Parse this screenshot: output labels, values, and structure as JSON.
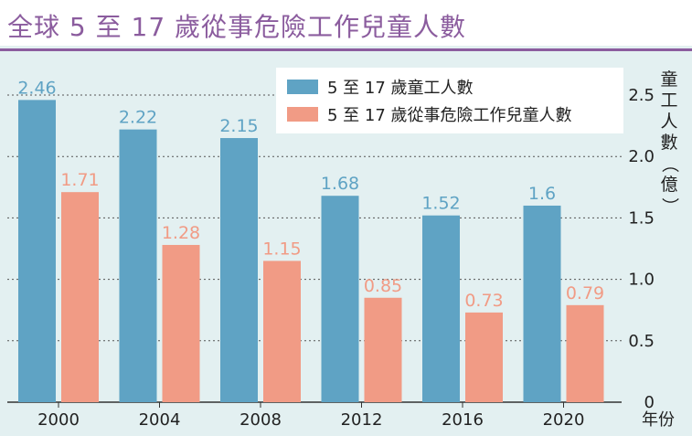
{
  "title": "全球 5 至 17 歲從事危險工作兒童人數",
  "colors": {
    "title": "#8b5c9e",
    "series1": "#5fa3c4",
    "series2": "#f19b85",
    "background": "#e3f0f1",
    "axis": "#333333"
  },
  "chart_data": {
    "type": "bar",
    "title": "全球 5 至 17 歲從事危險工作兒童人數",
    "xlabel": "年份",
    "ylabel": "童工人數（億）",
    "categories": [
      "2000",
      "2004",
      "2008",
      "2012",
      "2016",
      "2020"
    ],
    "series": [
      {
        "name": "5 至 17 歲童工人數",
        "values": [
          2.46,
          2.22,
          2.15,
          1.68,
          1.52,
          1.6
        ],
        "labels": [
          "2.46",
          "2.22",
          "2.15",
          "1.68",
          "1.52",
          "1.6"
        ]
      },
      {
        "name": "5 至 17 歲從事危險工作兒童人數",
        "values": [
          1.71,
          1.28,
          1.15,
          0.85,
          0.73,
          0.79
        ],
        "labels": [
          "1.71",
          "1.28",
          "1.15",
          "0.85",
          "0.73",
          "0.79"
        ]
      }
    ],
    "ylim": [
      0,
      2.5
    ],
    "yticks": [
      0,
      0.5,
      1.0,
      1.5,
      2.0,
      2.5
    ],
    "ytick_labels": [
      "0",
      "0.5",
      "1.0",
      "1.5",
      "2.0",
      "2.5"
    ],
    "grid": true,
    "legend_position": "top-right"
  }
}
